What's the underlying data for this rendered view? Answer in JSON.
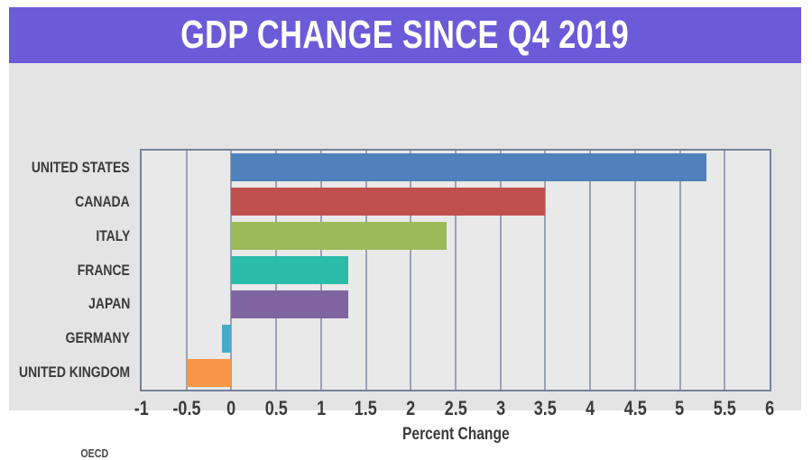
{
  "header": {
    "title": "GDP CHANGE SINCE Q4 2019",
    "bg_color": "#6C5BD8",
    "text_color": "#FFFFFF"
  },
  "chart_data": {
    "type": "bar",
    "orientation": "horizontal",
    "title": "GDP CHANGE SINCE Q4 2019",
    "categories": [
      "UNITED STATES",
      "CANADA",
      "ITALY",
      "FRANCE",
      "JAPAN",
      "GERMANY",
      "UNITED KINGDOM"
    ],
    "values": [
      5.3,
      3.5,
      2.4,
      1.3,
      1.3,
      -0.1,
      -0.5
    ],
    "bar_colors": [
      "#4F81BD",
      "#C0504D",
      "#9BBB59",
      "#2ABCA8",
      "#8064A2",
      "#46AAC8",
      "#F79646"
    ],
    "xlabel": "Percent Change",
    "ylabel": "",
    "xlim": [
      -1,
      6
    ],
    "xticks": [
      -1,
      -0.5,
      0,
      0.5,
      1,
      1.5,
      2,
      2.5,
      3,
      3.5,
      4,
      4.5,
      5,
      5.5,
      6
    ],
    "grid": true,
    "legend": "none"
  },
  "source": {
    "label": "OECD"
  },
  "colors": {
    "page_bg": "#FFFFFF",
    "canvas_bg": "#E5E4E5",
    "plot_bg": "#E9E9E9",
    "plot_border": "#75829C",
    "gridline": "#9AA2B4",
    "axis_text": "#3A3A3A"
  }
}
